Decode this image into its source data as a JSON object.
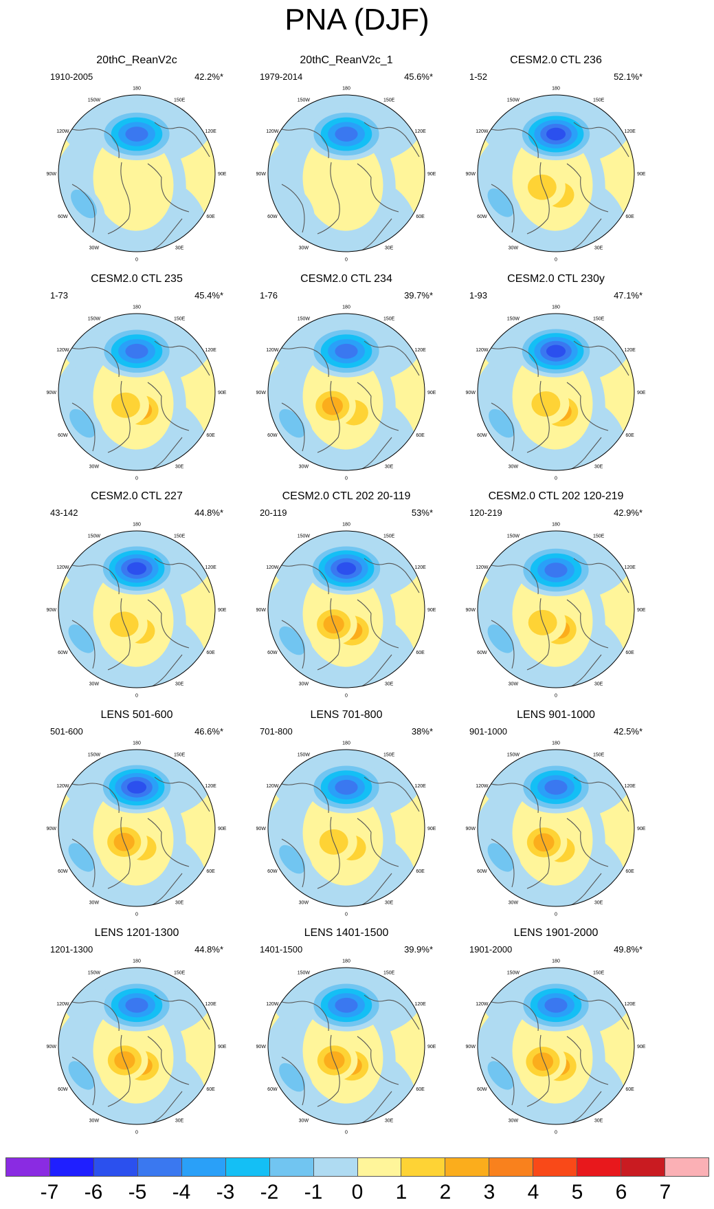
{
  "figure": {
    "title": "PNA (DJF)"
  },
  "colorbar": {
    "colors": [
      "#8a2be2",
      "#1f1fff",
      "#2b50ee",
      "#3a78f0",
      "#2aa0f8",
      "#14bff5",
      "#71c5f1",
      "#afdbf2",
      "#fff59a",
      "#fed335",
      "#fbad1c",
      "#f9811d",
      "#f94918",
      "#e8181c",
      "#c91b21",
      "#fbb0b5"
    ],
    "ticks": [
      "-7",
      "-6",
      "-5",
      "-4",
      "-3",
      "-2",
      "-1",
      "0",
      "1",
      "2",
      "3",
      "4",
      "5",
      "6",
      "7"
    ]
  },
  "lon_labels": [
    "180",
    "150E",
    "120E",
    "90E",
    "60E",
    "30E",
    "0",
    "30W",
    "60W",
    "90W",
    "120W",
    "150W"
  ],
  "panels": [
    {
      "title": "20thC_ReanV2c",
      "range": "1910-2005",
      "pct": "42.2%*",
      "low": {
        "lon": 180,
        "r": 0.5,
        "peak": -5.4
      },
      "high": [
        {
          "lon": 20,
          "r": 0.28,
          "peak": 1.8
        },
        {
          "lon": -50,
          "r": 0.22,
          "peak": 1.4
        }
      ],
      "lowAtl": {
        "lon": -60,
        "r": 0.78,
        "peak": -2.1
      }
    },
    {
      "title": "20thC_ReanV2c_1",
      "range": "1979-2014",
      "pct": "45.6%*",
      "low": {
        "lon": 180,
        "r": 0.5,
        "peak": -5.0
      },
      "high": [
        {
          "lon": 20,
          "r": 0.28,
          "peak": 1.7
        },
        {
          "lon": -45,
          "r": 0.22,
          "peak": 1.8
        }
      ],
      "lowAtl": {
        "lon": -60,
        "r": 0.78,
        "peak": -1.2
      }
    },
    {
      "title": "CESM2.0 CTL 236",
      "range": "1-52",
      "pct": "52.1%*",
      "low": {
        "lon": 180,
        "r": 0.5,
        "peak": -6.7
      },
      "high": [
        {
          "lon": 10,
          "r": 0.28,
          "peak": 2.6
        },
        {
          "lon": -45,
          "r": 0.25,
          "peak": 2.7
        }
      ],
      "lowAtl": {
        "lon": -62,
        "r": 0.8,
        "peak": -2.8
      }
    },
    {
      "title": "CESM2.0 CTL 235",
      "range": "1-73",
      "pct": "45.4%*",
      "low": {
        "lon": 180,
        "r": 0.52,
        "peak": -5.8
      },
      "high": [
        {
          "lon": 15,
          "r": 0.24,
          "peak": 3.6
        },
        {
          "lon": -40,
          "r": 0.22,
          "peak": 2.6
        }
      ],
      "lowAtl": {
        "lon": -60,
        "r": 0.8,
        "peak": -2.6
      }
    },
    {
      "title": "CESM2.0 CTL 234",
      "range": "1-76",
      "pct": "39.7%*",
      "low": {
        "lon": 180,
        "r": 0.52,
        "peak": -5.6
      },
      "high": [
        {
          "lon": 20,
          "r": 0.28,
          "peak": 2.7
        },
        {
          "lon": -45,
          "r": 0.25,
          "peak": 3.8
        }
      ],
      "lowAtl": {
        "lon": -60,
        "r": 0.8,
        "peak": -2.5
      }
    },
    {
      "title": "CESM2.0 CTL 230y",
      "range": "1-93",
      "pct": "47.1%*",
      "low": {
        "lon": 180,
        "r": 0.52,
        "peak": -6.0
      },
      "high": [
        {
          "lon": 15,
          "r": 0.26,
          "peak": 3.5
        },
        {
          "lon": -40,
          "r": 0.2,
          "peak": 2.4
        }
      ],
      "lowAtl": {
        "lon": -60,
        "r": 0.8,
        "peak": -2.4
      }
    },
    {
      "title": "CESM2.0 CTL 227",
      "range": "43-142",
      "pct": "44.8%*",
      "low": {
        "lon": 180,
        "r": 0.52,
        "peak": -6.2
      },
      "high": [
        {
          "lon": 10,
          "r": 0.28,
          "peak": 2.6
        },
        {
          "lon": -40,
          "r": 0.25,
          "peak": 2.4
        }
      ],
      "lowAtl": {
        "lon": -62,
        "r": 0.8,
        "peak": -2.5
      }
    },
    {
      "title": "CESM2.0 CTL 202 20-119",
      "range": "20-119",
      "pct": "53%*",
      "low": {
        "lon": 180,
        "r": 0.52,
        "peak": -6.8
      },
      "high": [
        {
          "lon": 15,
          "r": 0.28,
          "peak": 3.4
        },
        {
          "lon": -40,
          "r": 0.25,
          "peak": 3.5
        }
      ],
      "lowAtl": {
        "lon": -60,
        "r": 0.8,
        "peak": -2.6
      }
    },
    {
      "title": "CESM2.0 CTL 202 120-219",
      "range": "120-219",
      "pct": "42.9%*",
      "low": {
        "lon": 180,
        "r": 0.5,
        "peak": -5.8
      },
      "high": [
        {
          "lon": 10,
          "r": 0.26,
          "peak": 3.6
        },
        {
          "lon": -45,
          "r": 0.24,
          "peak": 2.6
        }
      ],
      "lowAtl": {
        "lon": -62,
        "r": 0.8,
        "peak": -2.4
      }
    },
    {
      "title": "LENS 501-600",
      "range": "501-600",
      "pct": "46.6%*",
      "low": {
        "lon": 180,
        "r": 0.52,
        "peak": -6.1
      },
      "high": [
        {
          "lon": 15,
          "r": 0.26,
          "peak": 2.5
        },
        {
          "lon": -42,
          "r": 0.24,
          "peak": 3.0
        }
      ],
      "lowAtl": {
        "lon": -62,
        "r": 0.8,
        "peak": -2.7
      }
    },
    {
      "title": "LENS 701-800",
      "range": "701-800",
      "pct": "38%*",
      "low": {
        "lon": 180,
        "r": 0.52,
        "peak": -5.3
      },
      "high": [
        {
          "lon": 15,
          "r": 0.26,
          "peak": 2.6
        },
        {
          "lon": -42,
          "r": 0.24,
          "peak": 2.7
        }
      ],
      "lowAtl": {
        "lon": -60,
        "r": 0.8,
        "peak": -2.2
      }
    },
    {
      "title": "LENS 901-1000",
      "range": "901-1000",
      "pct": "42.5%*",
      "low": {
        "lon": 180,
        "r": 0.52,
        "peak": -5.5
      },
      "high": [
        {
          "lon": 12,
          "r": 0.28,
          "peak": 2.8
        },
        {
          "lon": -40,
          "r": 0.24,
          "peak": 3.2
        }
      ],
      "lowAtl": {
        "lon": -62,
        "r": 0.8,
        "peak": -2.6
      }
    },
    {
      "title": "LENS 1201-1300",
      "range": "1201-1300",
      "pct": "44.8%*",
      "low": {
        "lon": 180,
        "r": 0.52,
        "peak": -5.6
      },
      "high": [
        {
          "lon": 15,
          "r": 0.26,
          "peak": 3.0
        },
        {
          "lon": -40,
          "r": 0.24,
          "peak": 3.2
        }
      ],
      "lowAtl": {
        "lon": -62,
        "r": 0.8,
        "peak": -2.6
      }
    },
    {
      "title": "LENS 1401-1500",
      "range": "1401-1500",
      "pct": "39.9%*",
      "low": {
        "lon": 180,
        "r": 0.52,
        "peak": -5.6
      },
      "high": [
        {
          "lon": 15,
          "r": 0.26,
          "peak": 3.0
        },
        {
          "lon": -40,
          "r": 0.24,
          "peak": 3.0
        }
      ],
      "lowAtl": {
        "lon": -60,
        "r": 0.8,
        "peak": -2.4
      }
    },
    {
      "title": "LENS 1901-2000",
      "range": "1901-2000",
      "pct": "49.8%*",
      "low": {
        "lon": 180,
        "r": 0.52,
        "peak": -5.8
      },
      "high": [
        {
          "lon": 10,
          "r": 0.26,
          "peak": 3.4
        },
        {
          "lon": -40,
          "r": 0.26,
          "peak": 3.6
        }
      ],
      "lowAtl": {
        "lon": -62,
        "r": 0.8,
        "peak": -2.6
      }
    }
  ]
}
